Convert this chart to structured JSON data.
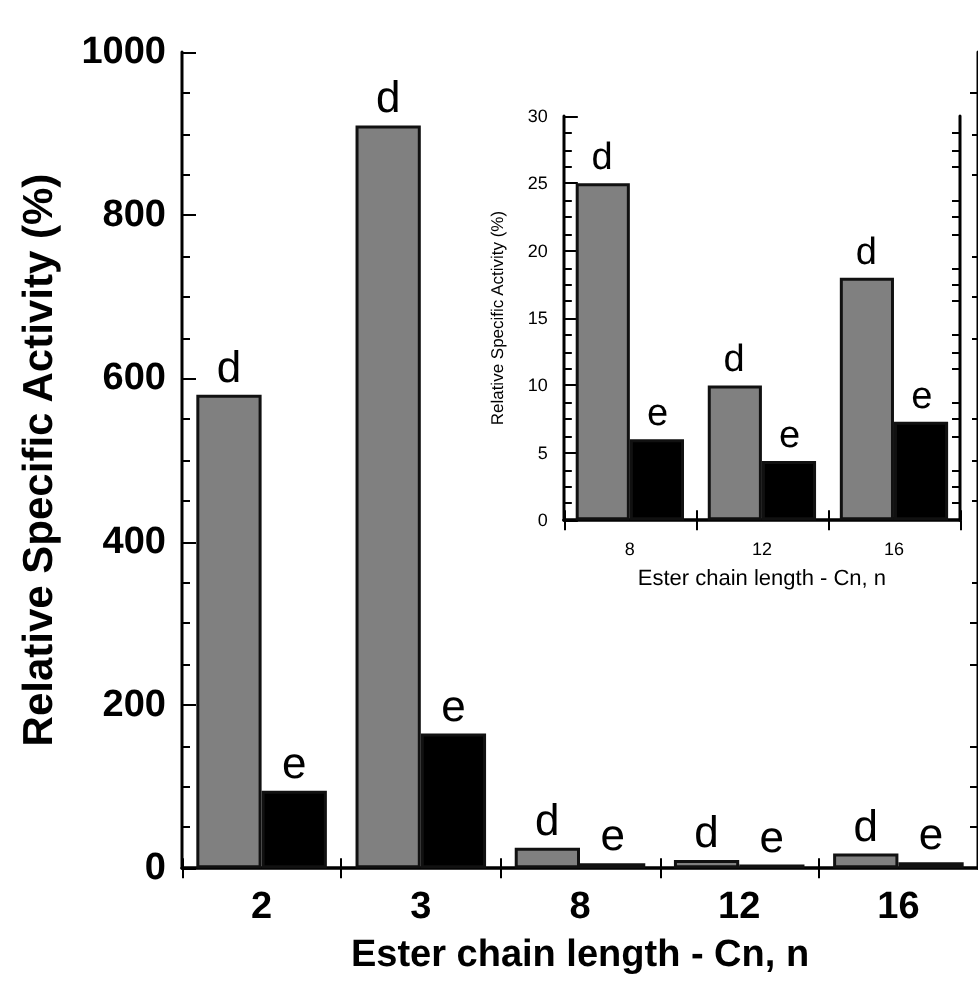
{
  "chart_data": [
    {
      "type": "bar",
      "xlabel": "Ester chain length - Cn, n",
      "ylabel": "Relative Specific Activity (%)",
      "categories": [
        "2",
        "3",
        "8",
        "12",
        "16"
      ],
      "series": [
        {
          "color": "#808080",
          "values": [
            580,
            910,
            25,
            10,
            18
          ]
        },
        {
          "color": "#000000",
          "values": [
            95,
            165,
            6,
            4.4,
            7.3
          ]
        }
      ],
      "ylim": [
        0,
        1000
      ],
      "yticks": [
        0,
        200,
        400,
        600,
        800,
        1000
      ],
      "annotations": [
        {
          "text": "d",
          "x": "2",
          "y": 580
        },
        {
          "text": "e",
          "x": "2",
          "y": 95
        },
        {
          "text": "d",
          "x": "3",
          "y": 910
        },
        {
          "text": "e",
          "x": "3",
          "y": 165
        },
        {
          "text": "d",
          "x": "8",
          "y": 25
        },
        {
          "text": "e",
          "x": "8",
          "y": 6
        },
        {
          "text": "d",
          "x": "12",
          "y": 10
        },
        {
          "text": "e",
          "x": "12",
          "y": 4.4
        },
        {
          "text": "d",
          "x": "16",
          "y": 18
        },
        {
          "text": "e",
          "x": "16",
          "y": 7.3
        }
      ]
    },
    {
      "type": "bar",
      "xlabel": "Ester chain length - Cn, n",
      "ylabel": "Relative Specific Activity (%)",
      "categories": [
        "8",
        "12",
        "16"
      ],
      "series": [
        {
          "color": "#808080",
          "values": [
            25,
            10,
            18
          ]
        },
        {
          "color": "#000000",
          "values": [
            6,
            4.4,
            7.3
          ]
        }
      ],
      "ylim": [
        0,
        30
      ],
      "yticks": [
        0,
        5,
        10,
        15,
        20,
        25,
        30
      ],
      "annotations": [
        {
          "text": "d",
          "x": "8",
          "y": 25
        },
        {
          "text": "e",
          "x": "8",
          "y": 6
        },
        {
          "text": "d",
          "x": "12",
          "y": 10
        },
        {
          "text": "e",
          "x": "12",
          "y": 4.4
        },
        {
          "text": "d",
          "x": "16",
          "y": 18
        },
        {
          "text": "e",
          "x": "16",
          "y": 7.3
        }
      ]
    }
  ]
}
